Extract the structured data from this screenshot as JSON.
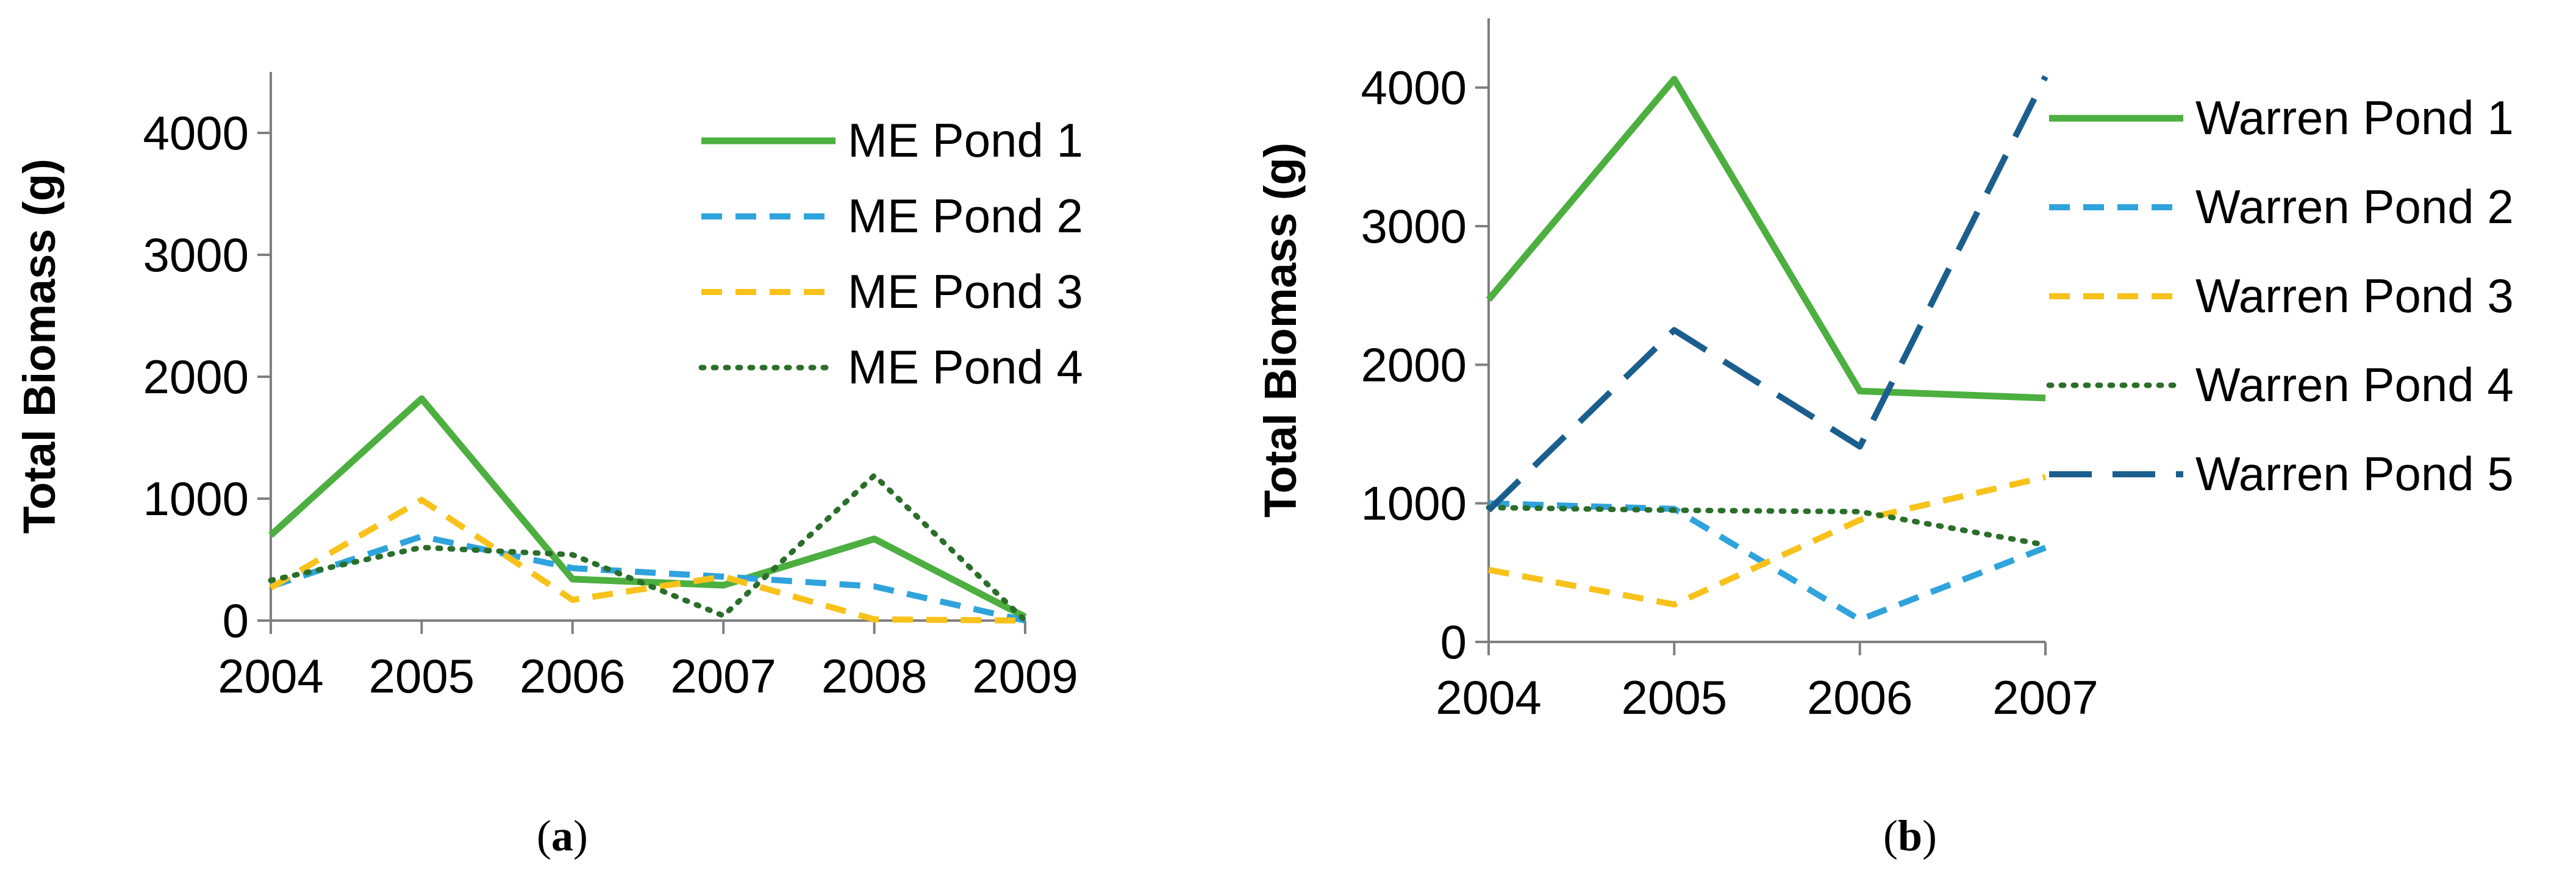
{
  "chart_data": [
    {
      "type": "line",
      "caption": "a",
      "ylabel": "Total  Biomass (g)",
      "xlabel": "",
      "x": [
        "2004",
        "2005",
        "2006",
        "2007",
        "2008",
        "2009"
      ],
      "ylim": [
        0,
        4500
      ],
      "yticks": [
        "0",
        "1000",
        "2000",
        "3000",
        "4000"
      ],
      "legend_position": "top-right",
      "grid": false,
      "series": [
        {
          "name": "ME Pond 1",
          "values": [
            700,
            1820,
            340,
            290,
            670,
            30
          ],
          "color": "#4caf3f",
          "style": "solid"
        },
        {
          "name": "ME Pond 2",
          "values": [
            280,
            690,
            430,
            360,
            280,
            0
          ],
          "color": "#2fa3dc",
          "style": "dashed"
        },
        {
          "name": "ME Pond 3",
          "values": [
            270,
            990,
            170,
            360,
            10,
            0
          ],
          "color": "#f8c21b",
          "style": "dashed"
        },
        {
          "name": "ME Pond 4",
          "values": [
            330,
            600,
            540,
            40,
            1190,
            0
          ],
          "color": "#2b6e2a",
          "style": "dotted"
        }
      ]
    },
    {
      "type": "line",
      "caption": "b",
      "ylabel": "Total Biomass (g)",
      "xlabel": "",
      "x": [
        "2004",
        "2005",
        "2006",
        "2007"
      ],
      "ylim": [
        0,
        4500
      ],
      "yticks": [
        "0",
        "1000",
        "2000",
        "3000",
        "4000"
      ],
      "legend_position": "right",
      "grid": false,
      "series": [
        {
          "name": "Warren Pond 1",
          "values": [
            2470,
            4060,
            1810,
            1760
          ],
          "color": "#4caf3f",
          "style": "solid"
        },
        {
          "name": "Warren Pond 2",
          "values": [
            1000,
            960,
            160,
            680
          ],
          "color": "#2fa3dc",
          "style": "dashed"
        },
        {
          "name": "Warren Pond 3",
          "values": [
            520,
            270,
            880,
            1190
          ],
          "color": "#f8c21b",
          "style": "dashed"
        },
        {
          "name": "Warren Pond 4",
          "values": [
            970,
            950,
            940,
            700
          ],
          "color": "#2b6e2a",
          "style": "dotted"
        },
        {
          "name": "Warren Pond 5",
          "values": [
            950,
            2250,
            1410,
            4080
          ],
          "color": "#1a5e8e",
          "style": "longdash"
        }
      ]
    }
  ]
}
